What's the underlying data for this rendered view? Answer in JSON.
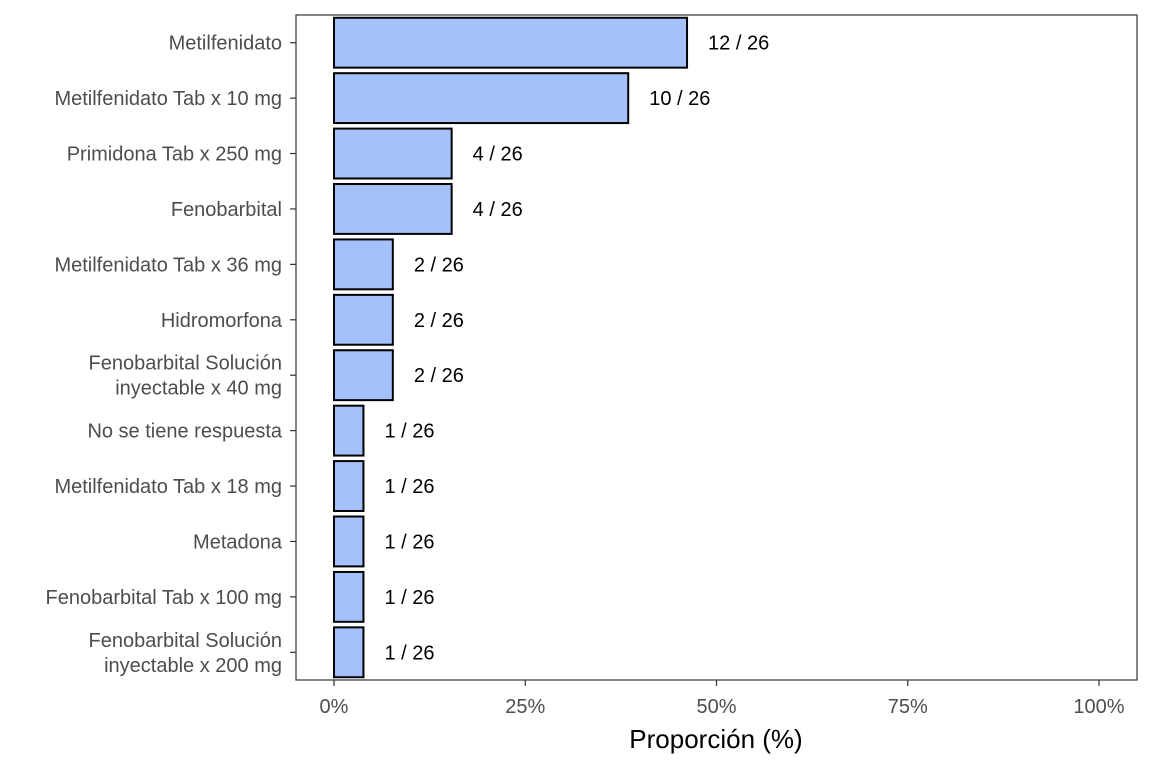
{
  "chart_data": {
    "type": "bar",
    "orientation": "horizontal",
    "categories": [
      "Metilfenidato",
      "Metilfenidato Tab x 10 mg",
      "Primidona Tab x 250 mg",
      "Fenobarbital",
      "Metilfenidato Tab x 36 mg",
      "Hidromorfona",
      "Fenobarbital Solución\ninyectable x 40 mg",
      "No se tiene respuesta",
      "Metilfenidato Tab x 18 mg",
      "Metadona",
      "Fenobarbital Tab x 100 mg",
      "Fenobarbital Solución\ninyectable x 200 mg"
    ],
    "counts": [
      12,
      10,
      4,
      4,
      2,
      2,
      2,
      1,
      1,
      1,
      1,
      1
    ],
    "total": 26,
    "values": [
      46.15,
      38.46,
      15.38,
      15.38,
      7.69,
      7.69,
      7.69,
      3.85,
      3.85,
      3.85,
      3.85,
      3.85
    ],
    "data_labels": [
      "12 / 26",
      "10 / 26",
      "4 / 26",
      "4 / 26",
      "2 / 26",
      "2 / 26",
      "2 / 26",
      "1 / 26",
      "1 / 26",
      "1 / 26",
      "1 / 26",
      "1 / 26"
    ],
    "xlabel": "Proporción (%)",
    "ylabel": "",
    "title": "",
    "xlim": [
      0,
      100
    ],
    "x_ticks": [
      0,
      25,
      50,
      75,
      100
    ],
    "x_tick_labels": [
      "0%",
      "25%",
      "50%",
      "75%",
      "100%"
    ],
    "grid": false,
    "legend": "none",
    "colors": {
      "bar_fill": "#a4c1fb",
      "bar_stroke": "#000000",
      "panel_border": "#333333",
      "axis_text": "#4d4d4d"
    }
  }
}
